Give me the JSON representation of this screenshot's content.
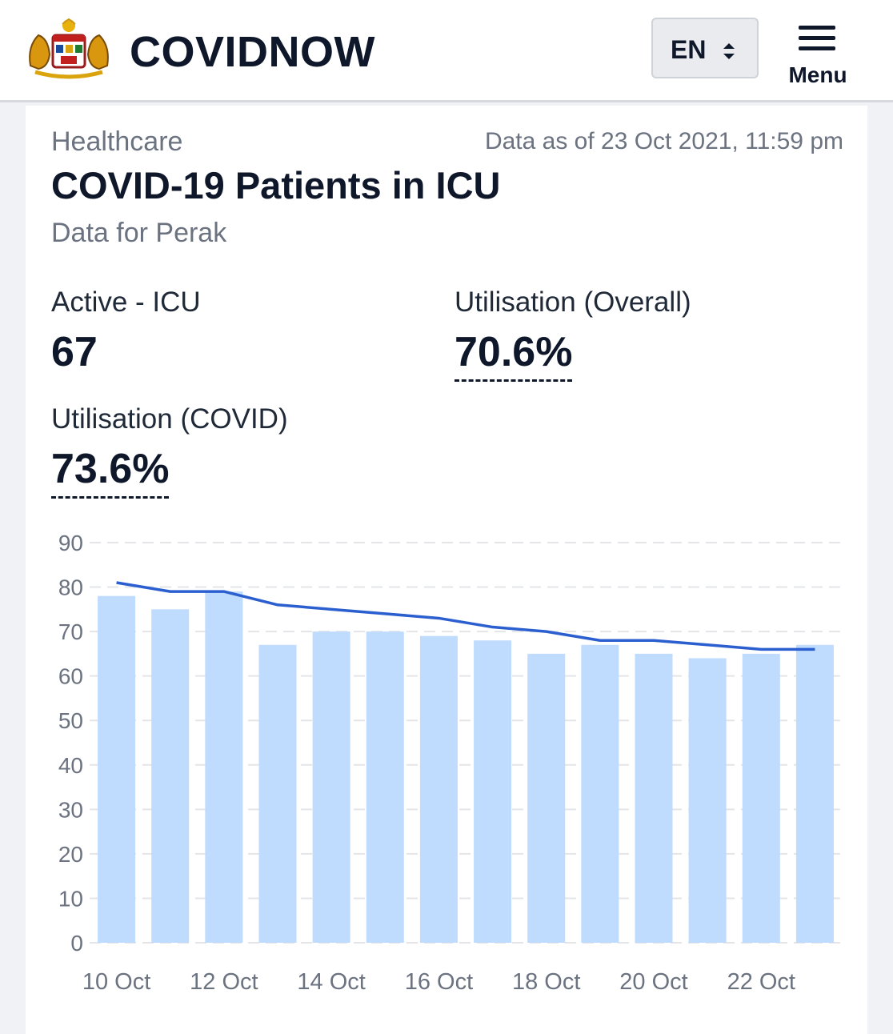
{
  "header": {
    "brand": "COVIDNOW",
    "language": "EN",
    "menu_label": "Menu",
    "logo_icon": "malaysia-coat-of-arms-icon"
  },
  "card": {
    "category": "Healthcare",
    "data_as_of": "Data as of 23 Oct 2021, 11:59 pm",
    "title": "COVID-19 Patients in ICU",
    "subtitle": "Data for Perak",
    "stats": {
      "active_icu": {
        "label": "Active - ICU",
        "value": "67"
      },
      "util_overall": {
        "label": "Utilisation (Overall)",
        "value": "70.6%"
      },
      "util_covid": {
        "label": "Utilisation (COVID)",
        "value": "73.6%"
      }
    }
  },
  "colors": {
    "bar": "#bfdbfd",
    "line": "#2b5fcf",
    "grid": "#e3e5e8",
    "tick_text": "#6b7280"
  },
  "chart_data": {
    "type": "bar",
    "categories": [
      "10 Oct",
      "11 Oct",
      "12 Oct",
      "13 Oct",
      "14 Oct",
      "15 Oct",
      "16 Oct",
      "17 Oct",
      "18 Oct",
      "19 Oct",
      "20 Oct",
      "21 Oct",
      "22 Oct",
      "23 Oct"
    ],
    "x_tick_labels": [
      "10 Oct",
      "12 Oct",
      "14 Oct",
      "16 Oct",
      "18 Oct",
      "20 Oct",
      "22 Oct"
    ],
    "series": [
      {
        "type": "bar",
        "values": [
          78,
          75,
          79,
          67,
          70,
          70,
          69,
          68,
          65,
          67,
          65,
          64,
          65,
          67
        ]
      },
      {
        "type": "line",
        "values": [
          81,
          79,
          79,
          76,
          75,
          74,
          73,
          71,
          70,
          68,
          68,
          67,
          66,
          66
        ]
      }
    ],
    "ylim": [
      0,
      90
    ],
    "y_ticks": [
      0,
      10,
      20,
      30,
      40,
      50,
      60,
      70,
      80,
      90
    ],
    "grid": "horizontal-dashed",
    "xlabel": "",
    "ylabel": ""
  }
}
